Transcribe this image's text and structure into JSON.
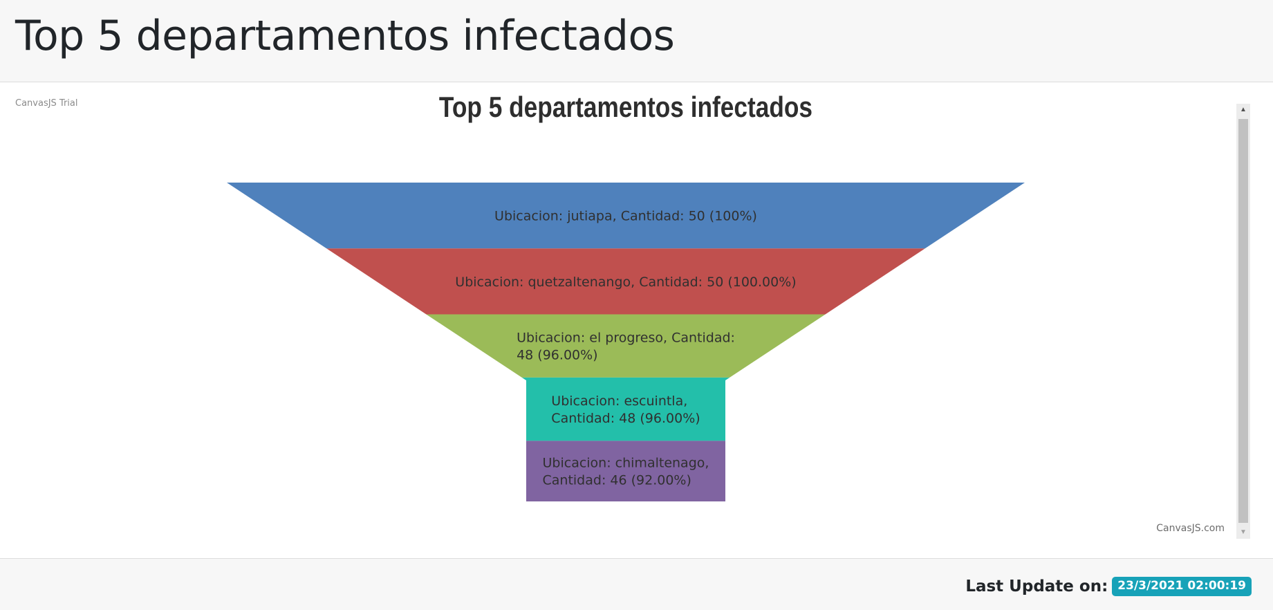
{
  "header": {
    "title": "Top 5 departamentos infectados"
  },
  "chart": {
    "trial_label": "CanvasJS Trial",
    "credit": "CanvasJS.com"
  },
  "footer": {
    "update_label": "Last Update on:",
    "update_value": "23/3/2021 02:00:19",
    "badge_color": "#17a2b8"
  },
  "chart_data": {
    "type": "funnel",
    "title": "Top 5 departamentos infectados",
    "categories": [
      "jutiapa",
      "quetzaltenango",
      "el progreso",
      "escuintla",
      "chimaltenago"
    ],
    "values": [
      50,
      50,
      48,
      48,
      46
    ],
    "labels": [
      [
        "Ubicacion: jutiapa, Cantidad: 50 (100%)"
      ],
      [
        "Ubicacion: quetzaltenango, Cantidad: 50 (100.00%)"
      ],
      [
        "Ubicacion: el progreso, Cantidad:",
        "48 (96.00%)"
      ],
      [
        "Ubicacion: escuintla,",
        "Cantidad: 48 (96.00%)"
      ],
      [
        "Ubicacion: chimaltenago,",
        "Cantidad: 46 (92.00%)"
      ]
    ],
    "colors": [
      "#4f81bc",
      "#c0504e",
      "#9bbb58",
      "#23bfaa",
      "#8064a1"
    ]
  }
}
